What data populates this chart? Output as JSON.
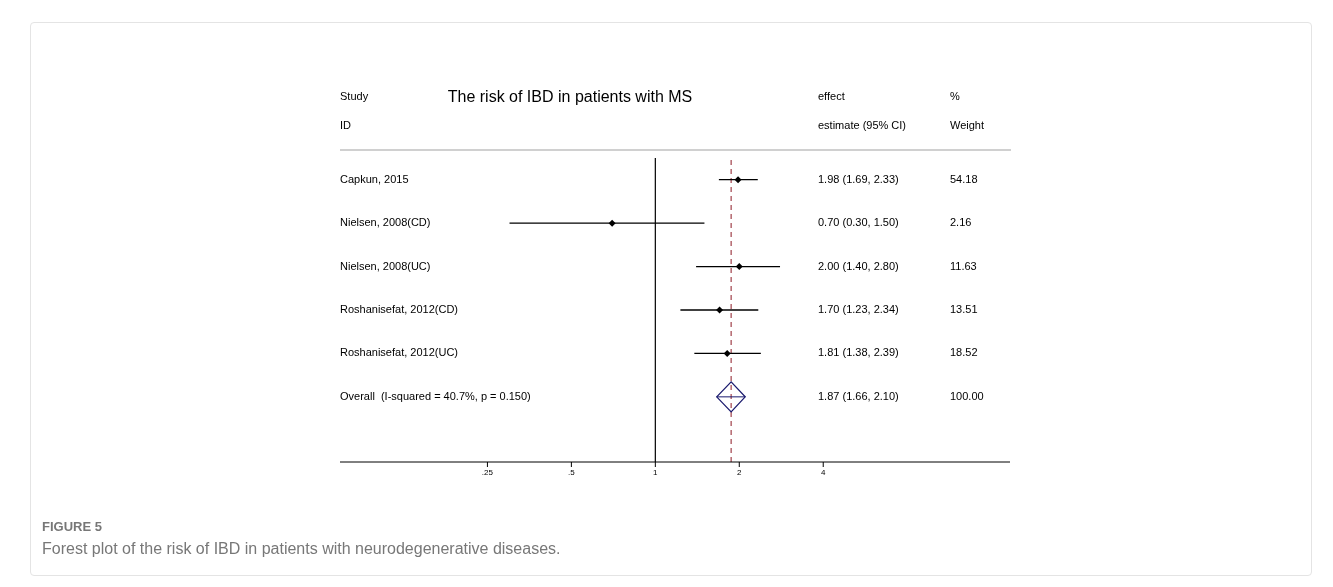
{
  "chart_data": {
    "type": "scatter",
    "orientation": "horizontal",
    "title": "The risk of IBD in patients with MS",
    "categories": [
      "Capkun, 2015",
      "Nielsen, 2008(CD)",
      "Nielsen, 2008(UC)",
      "Roshanisefat, 2012(CD)",
      "Roshanisefat, 2012(UC)",
      "Overall  (I-squared = 40.7%, p = 0.150)",
      null
    ],
    "series": [
      {
        "color": "#000000",
        "values": [
          1.98,
          0.7,
          2.0,
          1.7,
          1.81,
          null,
          null
        ],
        "errors": [
          [
            1.69,
            2.33
          ],
          [
            0.3,
            1.5
          ],
          [
            1.4,
            2.8
          ],
          [
            1.23,
            2.34
          ],
          [
            1.38,
            2.39
          ],
          null,
          null
        ]
      },
      {
        "color": "#1a1a6e",
        "values": [
          null,
          null,
          null,
          null,
          null,
          1.87,
          null
        ],
        "errors": [
          null,
          null,
          null,
          null,
          null,
          [
            1.66,
            2.1
          ],
          null
        ]
      }
    ],
    "log": "x",
    "xlim": [
      0.074,
      18.7
    ],
    "xticks": [
      {
        "value": 0.25,
        "label": ".25"
      },
      {
        "value": 0.5,
        "label": ".5"
      },
      1,
      2,
      4
    ],
    "ref_lines": [
      {
        "axis": "x",
        "value": 1,
        "color": "#000000",
        "line_style": "solid"
      },
      {
        "axis": "x",
        "value": 1.87,
        "color": "#a0404a",
        "line_style": "dashed"
      }
    ],
    "marker": "diamond",
    "grid": false,
    "legend": false,
    "annotations": [
      "Study",
      "ID",
      "effect",
      "estimate (95% CI)",
      "%",
      "Weight",
      "1.98 (1.69, 2.33)",
      "0.70 (0.30, 1.50)",
      "2.00 (1.40, 2.80)",
      "1.70 (1.23, 2.34)",
      "1.81 (1.38, 2.39)",
      "1.87 (1.66, 2.10)",
      "54.18",
      "2.16",
      "11.63",
      "13.51",
      "18.52",
      "100.00",
      "FIGURE 5",
      "Forest plot of the risk of IBD in patients with neurodegenerative diseases."
    ]
  }
}
